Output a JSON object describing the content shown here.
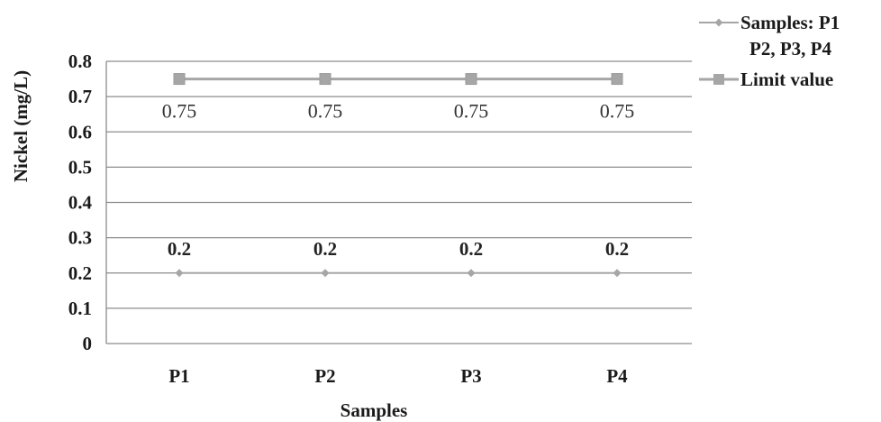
{
  "chart_data": {
    "type": "line",
    "categories": [
      "P1",
      "P2",
      "P3",
      "P4"
    ],
    "xlabel": "Samples",
    "ylabel": "Nickel (mg/L)",
    "ylim": [
      0,
      0.8
    ],
    "yticks": [
      "0",
      "0.1",
      "0.2",
      "0.3",
      "0.4",
      "0.5",
      "0.6",
      "0.7",
      "0.8"
    ],
    "grid": true,
    "legend_position": "top-right",
    "series": [
      {
        "name": "Samples: P1 P2, P3, P4",
        "legend_lines": [
          "Samples: P1",
          "P2, P3, P4"
        ],
        "values": [
          0.2,
          0.2,
          0.2,
          0.2
        ],
        "data_labels": [
          "0.2",
          "0.2",
          "0.2",
          "0.2"
        ],
        "marker": "diamond",
        "color": "#a6a6a6"
      },
      {
        "name": "Limit value",
        "legend_lines": [
          "Limit value"
        ],
        "values": [
          0.75,
          0.75,
          0.75,
          0.75
        ],
        "data_labels": [
          "0.75",
          "0.75",
          "0.75",
          "0.75"
        ],
        "marker": "square",
        "color": "#a6a6a6"
      }
    ]
  }
}
